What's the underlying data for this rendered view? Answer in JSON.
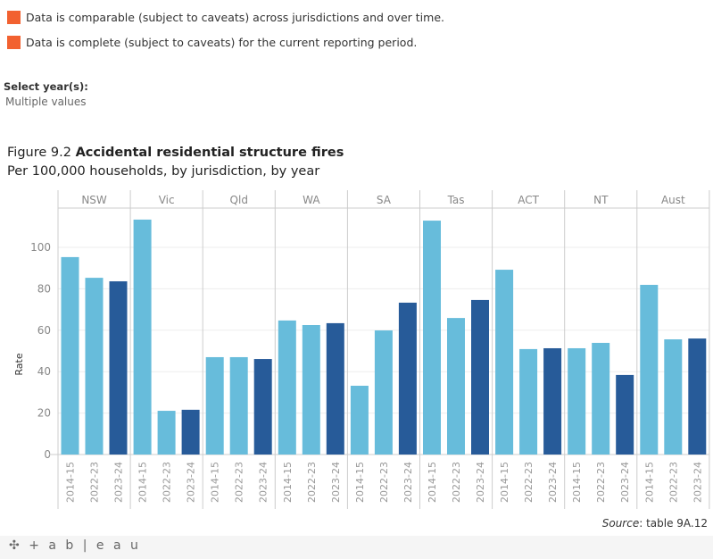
{
  "legend": [
    {
      "text": "Data is comparable (subject to caveats) across jurisdictions and over time.",
      "color": "#f26130"
    },
    {
      "text": "Data is complete (subject to caveats) for the current reporting period.",
      "color": "#f26130"
    }
  ],
  "filter": {
    "label": "Select year(s):",
    "value": "Multiple values"
  },
  "figure": {
    "prefix": "Figure 9.2",
    "title": "Accidental residential structure fires",
    "subtitle": "Per 100,000 households, by jurisdiction, by year"
  },
  "source": {
    "label": "Source",
    "text": ": table 9A.12"
  },
  "footer": {
    "logo": "+ a b | e a u"
  },
  "chart_data": {
    "type": "bar",
    "ylabel": "Rate",
    "ylim": [
      0,
      120
    ],
    "yticks": [
      0,
      20,
      40,
      60,
      80,
      100
    ],
    "panels": [
      "NSW",
      "Vic",
      "Qld",
      "WA",
      "SA",
      "Tas",
      "ACT",
      "NT",
      "Aust"
    ],
    "categories": [
      "2014-15",
      "2022-23",
      "2023-24"
    ],
    "colors": {
      "2014-15": "#67bcdb",
      "2022-23": "#67bcdb",
      "2023-24": "#275b99"
    },
    "values": {
      "NSW": [
        95.3,
        85.3,
        83.6
      ],
      "Vic": [
        113.4,
        21.1,
        21.6
      ],
      "Qld": [
        47.0,
        47.0,
        46.1
      ],
      "WA": [
        64.7,
        62.5,
        63.4
      ],
      "SA": [
        33.2,
        59.9,
        73.3
      ],
      "Tas": [
        112.9,
        65.9,
        74.6
      ],
      "ACT": [
        89.2,
        50.9,
        51.3
      ],
      "NT": [
        51.3,
        53.9,
        38.4
      ],
      "Aust": [
        81.9,
        55.6,
        56.0
      ]
    },
    "grid": true,
    "legend": "none"
  }
}
